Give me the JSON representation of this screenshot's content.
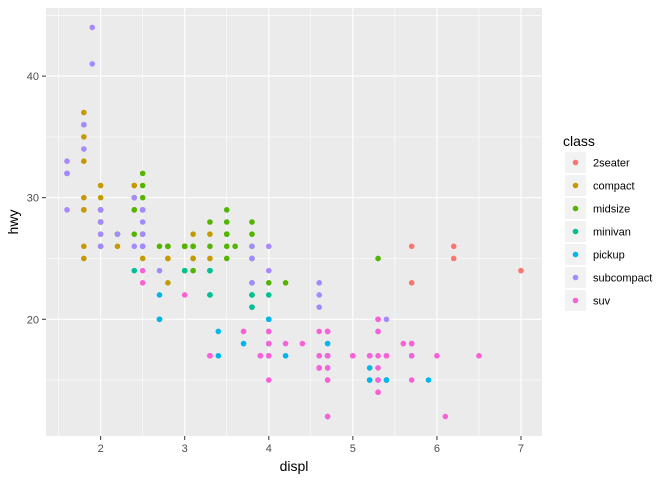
{
  "chart_data": {
    "type": "scatter",
    "xlabel": "displ",
    "ylabel": "hwy",
    "xlim": [
      1.35,
      7.25
    ],
    "ylim": [
      10.4,
      45.6
    ],
    "xticks": [
      2,
      3,
      4,
      5,
      6,
      7
    ],
    "yticks": [
      20,
      30,
      40
    ],
    "grid": true,
    "legend": {
      "title": "class",
      "position": "right"
    },
    "series": [
      {
        "name": "2seater",
        "color": "#F8766D",
        "points": [
          [
            5.7,
            26
          ],
          [
            5.7,
            23
          ],
          [
            6.2,
            26
          ],
          [
            6.2,
            25
          ],
          [
            7.0,
            24
          ]
        ]
      },
      {
        "name": "compact",
        "color": "#C49A00",
        "points": [
          [
            1.8,
            29
          ],
          [
            1.8,
            29
          ],
          [
            2.0,
            31
          ],
          [
            2.0,
            30
          ],
          [
            2.8,
            26
          ],
          [
            2.8,
            26
          ],
          [
            3.1,
            27
          ],
          [
            1.8,
            26
          ],
          [
            1.8,
            25
          ],
          [
            2.0,
            28
          ],
          [
            2.0,
            28
          ],
          [
            2.8,
            25
          ],
          [
            2.8,
            25
          ],
          [
            3.1,
            25
          ],
          [
            3.1,
            25
          ],
          [
            2.2,
            26
          ],
          [
            2.2,
            27
          ],
          [
            2.4,
            31
          ],
          [
            2.4,
            31
          ],
          [
            3.0,
            26
          ],
          [
            3.0,
            26
          ],
          [
            3.3,
            27
          ],
          [
            1.8,
            37
          ],
          [
            1.8,
            35
          ],
          [
            1.8,
            33
          ],
          [
            1.8,
            30
          ],
          [
            2.0,
            29
          ],
          [
            2.0,
            26
          ],
          [
            2.4,
            29
          ],
          [
            2.5,
            27
          ],
          [
            2.5,
            25
          ],
          [
            3.3,
            25
          ],
          [
            2.8,
            23
          ],
          [
            2.0,
            27
          ],
          [
            2.0,
            29
          ]
        ]
      },
      {
        "name": "midsize",
        "color": "#53B400",
        "points": [
          [
            2.4,
            27
          ],
          [
            2.4,
            30
          ],
          [
            2.5,
            32
          ],
          [
            2.5,
            31
          ],
          [
            3.0,
            26
          ],
          [
            3.1,
            26
          ],
          [
            3.5,
            29
          ],
          [
            3.5,
            26
          ],
          [
            3.8,
            26
          ],
          [
            3.8,
            28
          ],
          [
            3.3,
            28
          ],
          [
            3.8,
            23
          ],
          [
            3.8,
            25
          ],
          [
            4.0,
            23
          ],
          [
            2.0,
            29
          ],
          [
            2.0,
            28
          ],
          [
            2.7,
            26
          ],
          [
            3.0,
            26
          ],
          [
            3.5,
            27
          ],
          [
            3.5,
            27
          ],
          [
            3.6,
            26
          ],
          [
            3.8,
            27
          ],
          [
            4.2,
            23
          ],
          [
            5.3,
            25
          ],
          [
            2.4,
            29
          ],
          [
            2.5,
            27
          ],
          [
            3.5,
            25
          ],
          [
            3.1,
            26
          ],
          [
            3.1,
            24
          ],
          [
            2.8,
            26
          ],
          [
            3.3,
            26
          ],
          [
            3.0,
            26
          ],
          [
            3.5,
            28
          ],
          [
            2.5,
            30
          ],
          [
            2.5,
            29
          ],
          [
            2.2,
            27
          ],
          [
            2.0,
            26
          ],
          [
            2.8,
            26
          ],
          [
            2.5,
            26
          ],
          [
            3.0,
            24
          ]
        ]
      },
      {
        "name": "minivan",
        "color": "#00C094",
        "points": [
          [
            2.4,
            24
          ],
          [
            3.0,
            24
          ],
          [
            3.3,
            22
          ],
          [
            3.3,
            22
          ],
          [
            3.3,
            24
          ],
          [
            3.8,
            22
          ],
          [
            3.8,
            21
          ],
          [
            4.0,
            22
          ],
          [
            3.8,
            21
          ],
          [
            3.3,
            24
          ],
          [
            3.8,
            22
          ]
        ]
      },
      {
        "name": "pickup",
        "color": "#00B6EB",
        "points": [
          [
            2.7,
            20
          ],
          [
            2.7,
            20
          ],
          [
            2.7,
            22
          ],
          [
            3.4,
            19
          ],
          [
            3.4,
            17
          ],
          [
            3.7,
            18
          ],
          [
            3.9,
            17
          ],
          [
            4.0,
            17
          ],
          [
            4.0,
            20
          ],
          [
            4.2,
            17
          ],
          [
            4.6,
            17
          ],
          [
            4.6,
            16
          ],
          [
            4.7,
            17
          ],
          [
            4.7,
            17
          ],
          [
            4.7,
            16
          ],
          [
            5.2,
            17
          ],
          [
            5.2,
            15
          ],
          [
            5.2,
            16
          ],
          [
            5.7,
            17
          ],
          [
            5.9,
            15
          ],
          [
            5.4,
            15
          ],
          [
            5.4,
            15
          ],
          [
            4.0,
            18
          ],
          [
            4.7,
            17
          ],
          [
            4.7,
            18
          ],
          [
            4.7,
            17
          ],
          [
            5.2,
            15
          ],
          [
            4.0,
            19
          ],
          [
            4.0,
            20
          ],
          [
            5.3,
            15
          ],
          [
            4.7,
            12
          ]
        ]
      },
      {
        "name": "subcompact",
        "color": "#A58AFF",
        "points": [
          [
            1.6,
            33
          ],
          [
            1.6,
            32
          ],
          [
            1.6,
            32
          ],
          [
            1.6,
            29
          ],
          [
            1.6,
            32
          ],
          [
            1.8,
            34
          ],
          [
            1.8,
            36
          ],
          [
            1.8,
            36
          ],
          [
            2.0,
            29
          ],
          [
            2.0,
            26
          ],
          [
            2.0,
            27
          ],
          [
            2.0,
            26
          ],
          [
            2.4,
            26
          ],
          [
            2.5,
            26
          ],
          [
            2.5,
            28
          ],
          [
            2.5,
            29
          ],
          [
            2.2,
            27
          ],
          [
            2.4,
            30
          ],
          [
            2.5,
            27
          ],
          [
            1.9,
            44
          ],
          [
            1.9,
            41
          ],
          [
            2.0,
            29
          ],
          [
            2.0,
            28
          ],
          [
            2.5,
            26
          ],
          [
            2.7,
            24
          ],
          [
            3.8,
            26
          ],
          [
            3.8,
            25
          ],
          [
            4.0,
            26
          ],
          [
            4.0,
            24
          ],
          [
            4.6,
            21
          ],
          [
            4.6,
            22
          ],
          [
            4.6,
            23
          ],
          [
            5.4,
            20
          ],
          [
            3.8,
            23
          ],
          [
            5.3,
            19
          ],
          [
            2.5,
            29
          ]
        ]
      },
      {
        "name": "suv",
        "color": "#FB61D7",
        "points": [
          [
            5.3,
            20
          ],
          [
            5.3,
            15
          ],
          [
            5.3,
            20
          ],
          [
            5.7,
            17
          ],
          [
            6.0,
            17
          ],
          [
            5.7,
            18
          ],
          [
            5.3,
            19
          ],
          [
            5.7,
            15
          ],
          [
            6.5,
            17
          ],
          [
            3.7,
            19
          ],
          [
            3.7,
            19
          ],
          [
            3.9,
            17
          ],
          [
            4.7,
            15
          ],
          [
            4.7,
            17
          ],
          [
            5.2,
            17
          ],
          [
            4.6,
            17
          ],
          [
            5.4,
            17
          ],
          [
            4.7,
            19
          ],
          [
            4.7,
            12
          ],
          [
            4.0,
            17
          ],
          [
            4.0,
            15
          ],
          [
            4.6,
            16
          ],
          [
            5.0,
            17
          ],
          [
            4.2,
            18
          ],
          [
            4.4,
            18
          ],
          [
            4.7,
            19
          ],
          [
            5.3,
            17
          ],
          [
            5.3,
            16
          ],
          [
            4.0,
            19
          ],
          [
            4.0,
            18
          ],
          [
            4.6,
            19
          ],
          [
            5.0,
            17
          ],
          [
            5.4,
            17
          ],
          [
            6.1,
            12
          ],
          [
            5.3,
            14
          ],
          [
            5.6,
            18
          ],
          [
            3.3,
            17
          ],
          [
            3.3,
            17
          ],
          [
            4.0,
            19
          ],
          [
            4.7,
            19
          ],
          [
            4.7,
            16
          ],
          [
            5.7,
            18
          ],
          [
            4.0,
            17
          ],
          [
            2.5,
            24
          ],
          [
            2.5,
            23
          ],
          [
            3.0,
            22
          ],
          [
            3.3,
            17
          ],
          [
            3.9,
            17
          ],
          [
            4.6,
            16
          ],
          [
            5.2,
            17
          ],
          [
            4.7,
            17
          ],
          [
            5.3,
            14
          ],
          [
            4.7,
            15
          ]
        ]
      }
    ]
  }
}
